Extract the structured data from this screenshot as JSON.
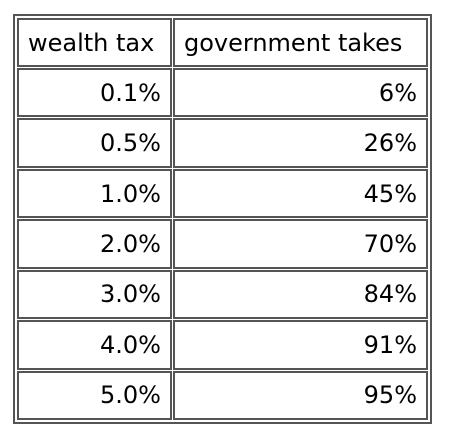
{
  "table": {
    "headers": [
      "wealth tax",
      "government takes"
    ],
    "rows": [
      [
        "0.1%",
        "6%"
      ],
      [
        "0.5%",
        "26%"
      ],
      [
        "1.0%",
        "45%"
      ],
      [
        "2.0%",
        "70%"
      ],
      [
        "3.0%",
        "84%"
      ],
      [
        "4.0%",
        "91%"
      ],
      [
        "5.0%",
        "95%"
      ]
    ]
  },
  "colors": {
    "border": "#555555",
    "text": "#000000",
    "background": "#ffffff"
  }
}
